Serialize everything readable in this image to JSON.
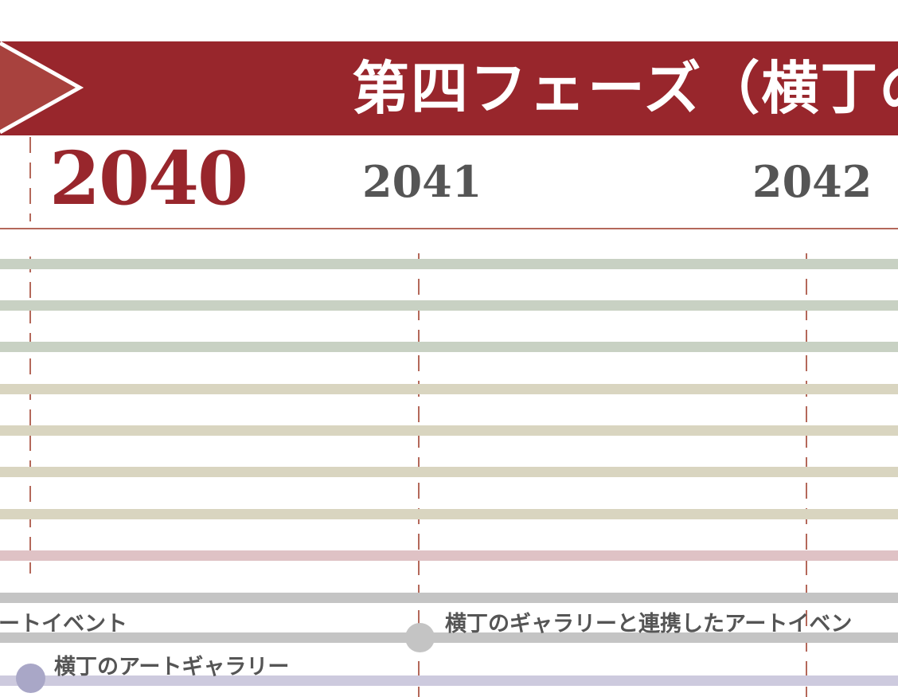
{
  "phase": {
    "title": "第四フェーズ（横丁の",
    "banner_color": "#98262c",
    "arrow_color": "#a8423e"
  },
  "years": {
    "current": "2040",
    "next": [
      "2041",
      "2042"
    ]
  },
  "colors": {
    "guideline": "#b4685a",
    "green_bar": "#c8d1c3",
    "beige_bar": "#d9d5c0",
    "pink_bar": "#dfc2c5",
    "gray_bar": "#c4c4c4",
    "lavender_bar": "#cdcade",
    "gray_dot": "#c4c4c4",
    "lavender_dot": "#a9a7c7"
  },
  "events": [
    {
      "label": "ートイベント",
      "track": "gray"
    },
    {
      "label": "横丁のギャラリーと連携したアートイベン",
      "track": "gray"
    },
    {
      "label": "横丁のアートギャラリー",
      "track": "lavender"
    }
  ]
}
